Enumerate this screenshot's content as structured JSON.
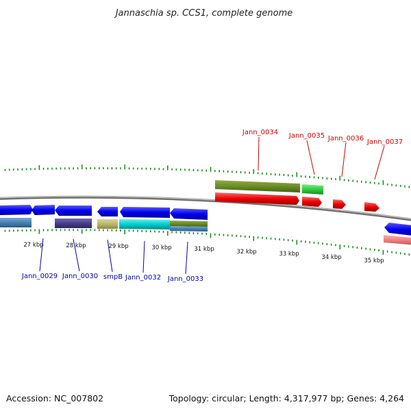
{
  "title": "Jannaschia sp. CCS1, complete genome",
  "footer": {
    "accession": "Accession: NC_007802",
    "summary": "Topology: circular; Length: 4,317,977 bp; Genes: 4,264"
  },
  "colors": {
    "backbone": "#888888",
    "ticks": "#228b22",
    "top_label": "#cc0000",
    "bottom_label": "#0000aa"
  },
  "scale_labels": [
    "27 kbp",
    "28 kbp",
    "29 kbp",
    "30 kbp",
    "31 kbp",
    "32 kbp",
    "33 kbp",
    "34 kbp",
    "35 kbp"
  ],
  "gene_labels_top": [
    "Jann_0034",
    "Jann_0035",
    "Jann_0036",
    "Jann_0037"
  ],
  "gene_labels_bottom": [
    "Jann_0029",
    "Jann_0030",
    "smpB",
    "Jann_0032",
    "Jann_0033"
  ]
}
